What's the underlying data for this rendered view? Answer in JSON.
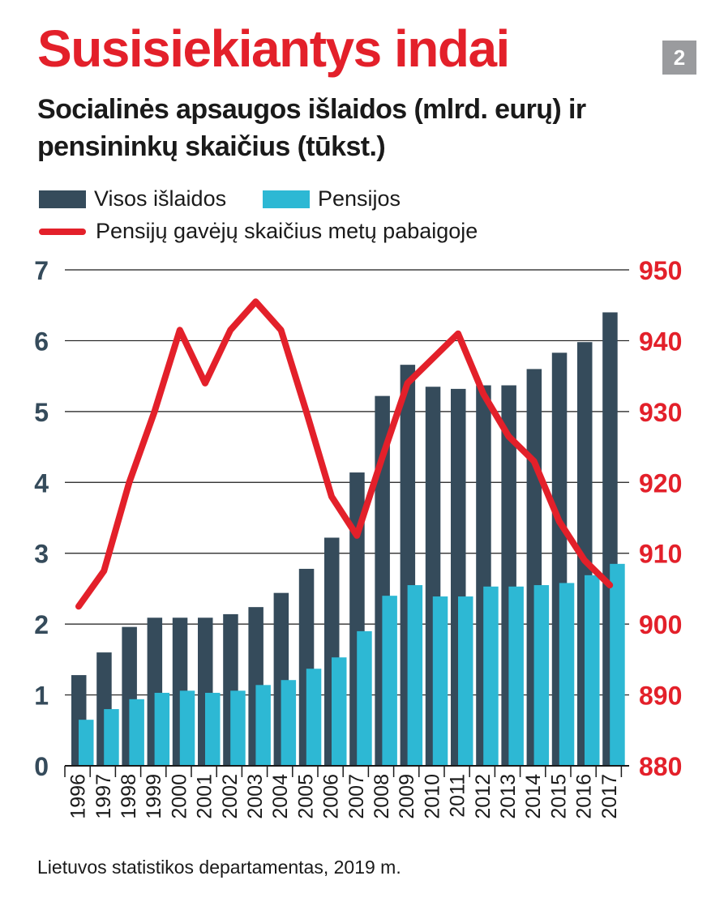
{
  "header": {
    "title": "Susisiekiantys indai",
    "badge": "2",
    "subtitle": "Socialinės apsaugos išlaidos (mlrd. eurų) ir pensininkų skaičius (tūkst.)"
  },
  "legend": {
    "items": [
      {
        "label": "Visos išlaidos",
        "color": "#354b5b"
      },
      {
        "label": "Pensijos",
        "color": "#2db8d4"
      },
      {
        "label": "Pensijų gavėjų skaičius metų pabaigoje",
        "color": "#e3202a"
      }
    ]
  },
  "chart_data": {
    "type": "bar",
    "categories": [
      "1996",
      "1997",
      "1998",
      "1999",
      "2000",
      "2001",
      "2002",
      "2003",
      "2004",
      "2005",
      "2006",
      "2007",
      "2008",
      "2009",
      "2010",
      "2011",
      "2012",
      "2013",
      "2014",
      "2015",
      "2016",
      "2017"
    ],
    "series": [
      {
        "name": "Visos išlaidos",
        "type": "bar",
        "axis": "left",
        "color": "#354b5b",
        "values": [
          1.28,
          1.6,
          1.96,
          2.09,
          2.09,
          2.09,
          2.14,
          2.24,
          2.44,
          2.78,
          3.22,
          4.14,
          5.22,
          5.66,
          5.35,
          5.32,
          5.37,
          5.37,
          5.6,
          5.83,
          5.98,
          6.4
        ]
      },
      {
        "name": "Pensijos",
        "type": "bar",
        "axis": "left",
        "color": "#2db8d4",
        "values": [
          0.65,
          0.8,
          0.94,
          1.03,
          1.06,
          1.03,
          1.06,
          1.14,
          1.21,
          1.37,
          1.53,
          1.9,
          2.4,
          2.55,
          2.39,
          2.39,
          2.53,
          2.53,
          2.55,
          2.58,
          2.69,
          2.85
        ]
      },
      {
        "name": "Pensijų gavėjų skaičius metų pabaigoje",
        "type": "line",
        "axis": "right",
        "color": "#e3202a",
        "values": [
          902.5,
          907.5,
          920,
          930,
          941.5,
          934,
          941.5,
          945.5,
          941.5,
          930,
          918,
          912.5,
          923.5,
          934,
          937.5,
          941,
          932.5,
          926.5,
          923,
          914.5,
          909,
          905.5
        ]
      }
    ],
    "yleft": {
      "lim": [
        0,
        7
      ],
      "ticks": [
        "0",
        "1",
        "2",
        "3",
        "4",
        "5",
        "6",
        "7"
      ]
    },
    "yright": {
      "lim": [
        880,
        950
      ],
      "ticks": [
        "880",
        "890",
        "900",
        "910",
        "920",
        "930",
        "940",
        "950"
      ]
    },
    "grid": true
  },
  "footer": {
    "source": "Lietuvos statistikos departamentas, 2019 m."
  }
}
